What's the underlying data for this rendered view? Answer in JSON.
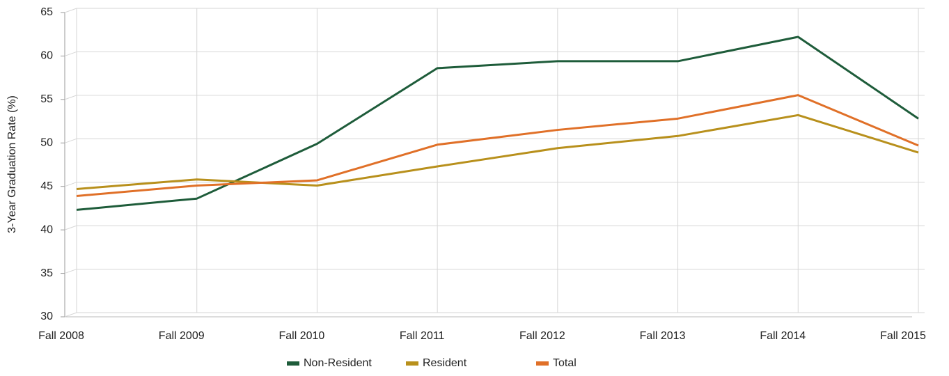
{
  "chart_data": {
    "type": "line",
    "y_label": "3-Year Graduation Rate (%)",
    "categories": [
      "Fall 2008",
      "Fall 2009",
      "Fall 2010",
      "Fall 2011",
      "Fall 2012",
      "Fall 2013",
      "Fall 2014",
      "Fall 2015"
    ],
    "series": [
      {
        "name": "Non-Resident",
        "color": "#1e5c3a",
        "values": [
          42.3,
          43.6,
          49.9,
          58.6,
          59.4,
          59.4,
          62.2,
          52.8
        ]
      },
      {
        "name": "Resident",
        "color": "#b8901c",
        "values": [
          44.7,
          45.8,
          45.1,
          47.3,
          49.4,
          50.8,
          53.2,
          48.9
        ]
      },
      {
        "name": "Total",
        "color": "#e07028",
        "values": [
          43.9,
          45.1,
          45.7,
          49.8,
          51.5,
          52.8,
          55.5,
          49.7
        ]
      }
    ],
    "ylim": [
      30,
      65
    ],
    "yticks": [
      30,
      35,
      40,
      45,
      50,
      55,
      60,
      65
    ],
    "grid": true,
    "legend": "bottom"
  }
}
